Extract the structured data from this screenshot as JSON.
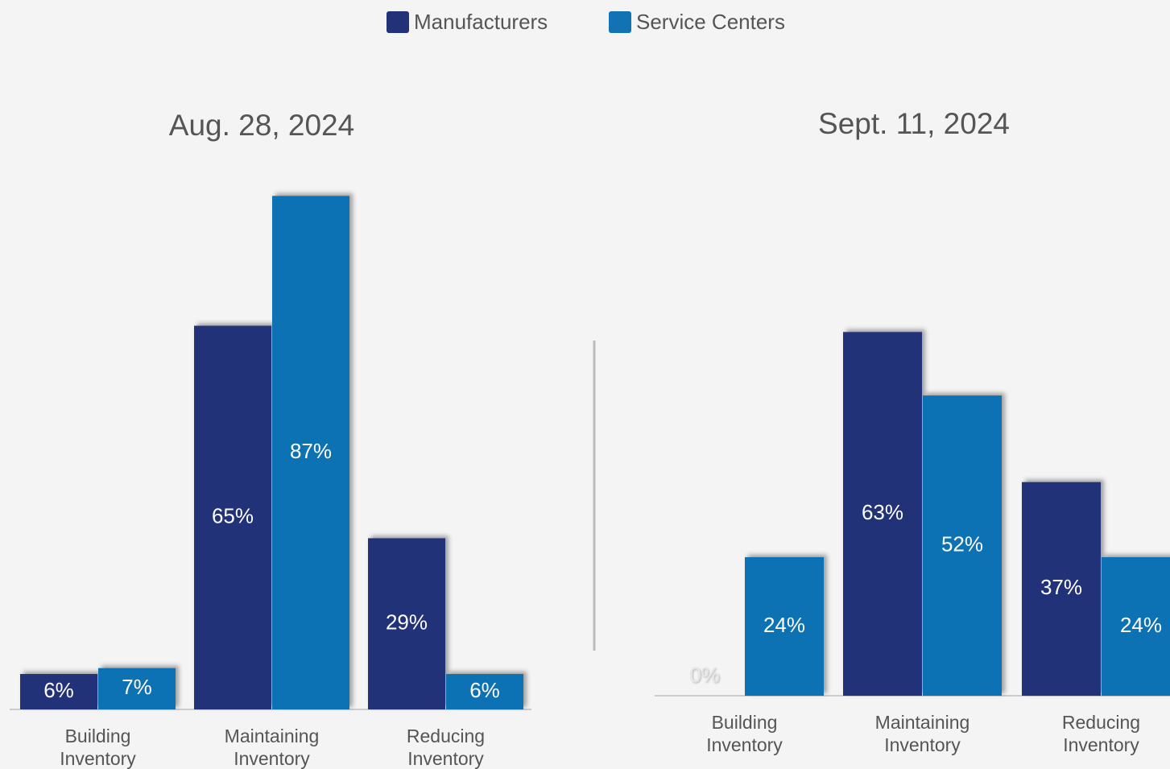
{
  "chart_data": [
    {
      "type": "bar",
      "title": "Aug. 28, 2024",
      "categories": [
        "Building Inventory",
        "Maintaining Inventory",
        "Reducing Inventory"
      ],
      "series": [
        {
          "name": "Manufacturers",
          "color": "#213278",
          "values": [
            6,
            65,
            29
          ],
          "value_labels": [
            "6%",
            "65%",
            "29%"
          ]
        },
        {
          "name": "Service Centers",
          "color": "#1172b4",
          "values": [
            7,
            87,
            6
          ],
          "value_labels": [
            "7%",
            "87%",
            "6%"
          ]
        }
      ]
    },
    {
      "type": "bar",
      "title": "Sept. 11, 2024",
      "categories": [
        "Building Inventory",
        "Maintaining Inventory",
        "Reducing Inventory"
      ],
      "series": [
        {
          "name": "Manufacturers",
          "color": "#213278",
          "values": [
            0,
            63,
            37
          ],
          "value_labels": [
            "0%",
            "63%",
            "37%"
          ]
        },
        {
          "name": "Service Centers",
          "color": "#1172b4",
          "values": [
            24,
            52,
            24
          ],
          "value_labels": [
            "24%",
            "52%",
            "24%"
          ]
        }
      ]
    }
  ]
}
